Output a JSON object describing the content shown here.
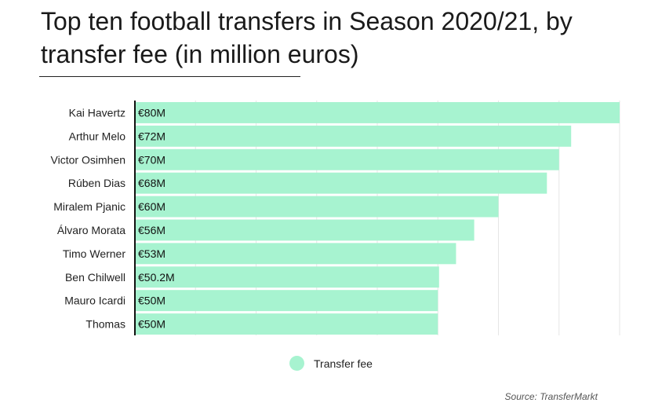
{
  "chart_data": {
    "type": "bar",
    "orientation": "horizontal",
    "title": "Top ten football transfers in Season 2020/21, by transfer fee (in million euros)",
    "xlabel": "",
    "ylabel": "",
    "xlim": [
      0,
      80
    ],
    "grid": true,
    "legend_position": "bottom",
    "categories": [
      "Kai Havertz",
      "Arthur Melo",
      "Victor Osimhen",
      "Rúben Dias",
      "Miralem Pjanic",
      "Álvaro Morata",
      "Timo Werner",
      "Ben Chilwell",
      "Mauro Icardi",
      "Thomas"
    ],
    "series": [
      {
        "name": "Transfer fee",
        "color": "#a7f3d0",
        "values": [
          80,
          72,
          70,
          68,
          60,
          56,
          53,
          50.2,
          50,
          50
        ],
        "data_labels": [
          "€80M",
          "€72M",
          "€70M",
          "€68M",
          "€60M",
          "€56M",
          "€53M",
          "€50.2M",
          "€50M",
          "€50M"
        ]
      }
    ],
    "source": "Source: TransferMarkt"
  }
}
